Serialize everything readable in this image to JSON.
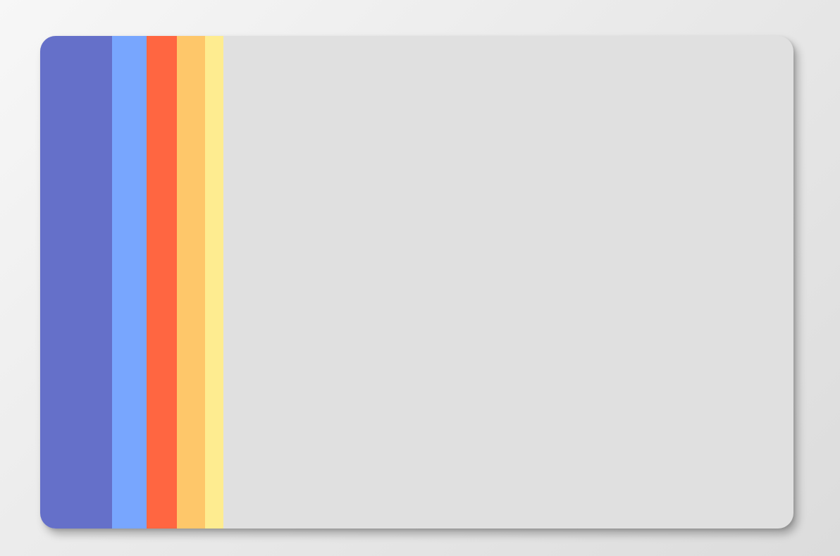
{
  "palette": {
    "stripes": [
      {
        "name": "indigo",
        "color": "#6570c9"
      },
      {
        "name": "sky-blue",
        "color": "#78a6fe"
      },
      {
        "name": "tomato",
        "color": "#ff6641"
      },
      {
        "name": "light-orange",
        "color": "#fec76a"
      },
      {
        "name": "pale-yellow",
        "color": "#feec90"
      }
    ],
    "card_background": "#e0e0e0"
  }
}
